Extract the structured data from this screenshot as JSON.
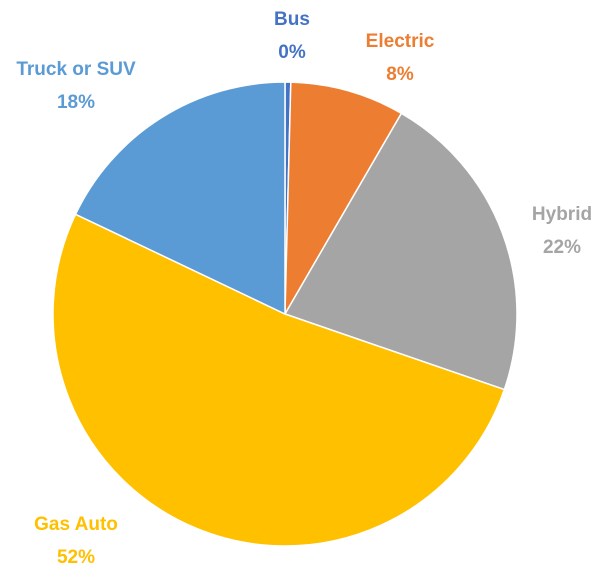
{
  "chart_data": {
    "type": "pie",
    "categories": [
      "Bus",
      "Electric",
      "Hybrid",
      "Gas Auto",
      "Truck or SUV"
    ],
    "values": [
      0.4,
      8,
      22,
      52,
      18
    ],
    "value_labels": [
      "0%",
      "8%",
      "22%",
      "52%",
      "18%"
    ],
    "colors": [
      "#4472c4",
      "#ed7d31",
      "#a5a5a5",
      "#ffc000",
      "#5b9bd5"
    ]
  }
}
